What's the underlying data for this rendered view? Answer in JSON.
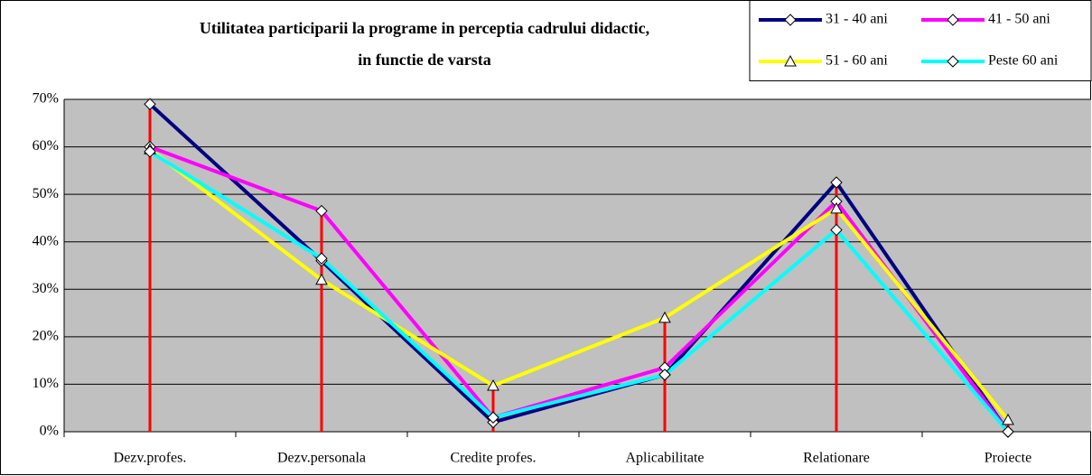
{
  "chart_data": {
    "type": "line",
    "title_lines": [
      "Utilitatea participarii la programe in perceptia cadrului didactic,",
      "in functie de varsta"
    ],
    "categories": [
      "Dezv.profes.",
      "Dezv.personala",
      "Credite profes.",
      "Aplicabilitate",
      "Relationare",
      "Proiecte"
    ],
    "series": [
      {
        "name": "31 - 40 ani",
        "color": "#000080",
        "marker": "diamond",
        "values": [
          69,
          36,
          2,
          12,
          52.5,
          0
        ]
      },
      {
        "name": "41 - 50 ani",
        "color": "#ff00ff",
        "marker": "diamond",
        "values": [
          60,
          46.5,
          3,
          13.5,
          48.5,
          0
        ]
      },
      {
        "name": "51 - 60 ani",
        "color": "#ffff00",
        "marker": "triangle",
        "values": [
          59.5,
          32,
          9.7,
          24,
          47,
          2.5
        ]
      },
      {
        "name": "Peste 60 ani",
        "color": "#00ffff",
        "marker": "diamond",
        "values": [
          59,
          36.5,
          3,
          12,
          42.5,
          0
        ]
      }
    ],
    "drop_line_color": "#ff0000",
    "ylim": [
      0,
      70
    ],
    "yticks": [
      {
        "value": 0,
        "label": "0%"
      },
      {
        "value": 10,
        "label": "10%"
      },
      {
        "value": 20,
        "label": "20%"
      },
      {
        "value": 30,
        "label": "30%"
      },
      {
        "value": 40,
        "label": "40%"
      },
      {
        "value": 50,
        "label": "50%"
      },
      {
        "value": 60,
        "label": "60%"
      },
      {
        "value": 70,
        "label": "70%"
      }
    ],
    "grid": true,
    "legend": "top-right"
  }
}
